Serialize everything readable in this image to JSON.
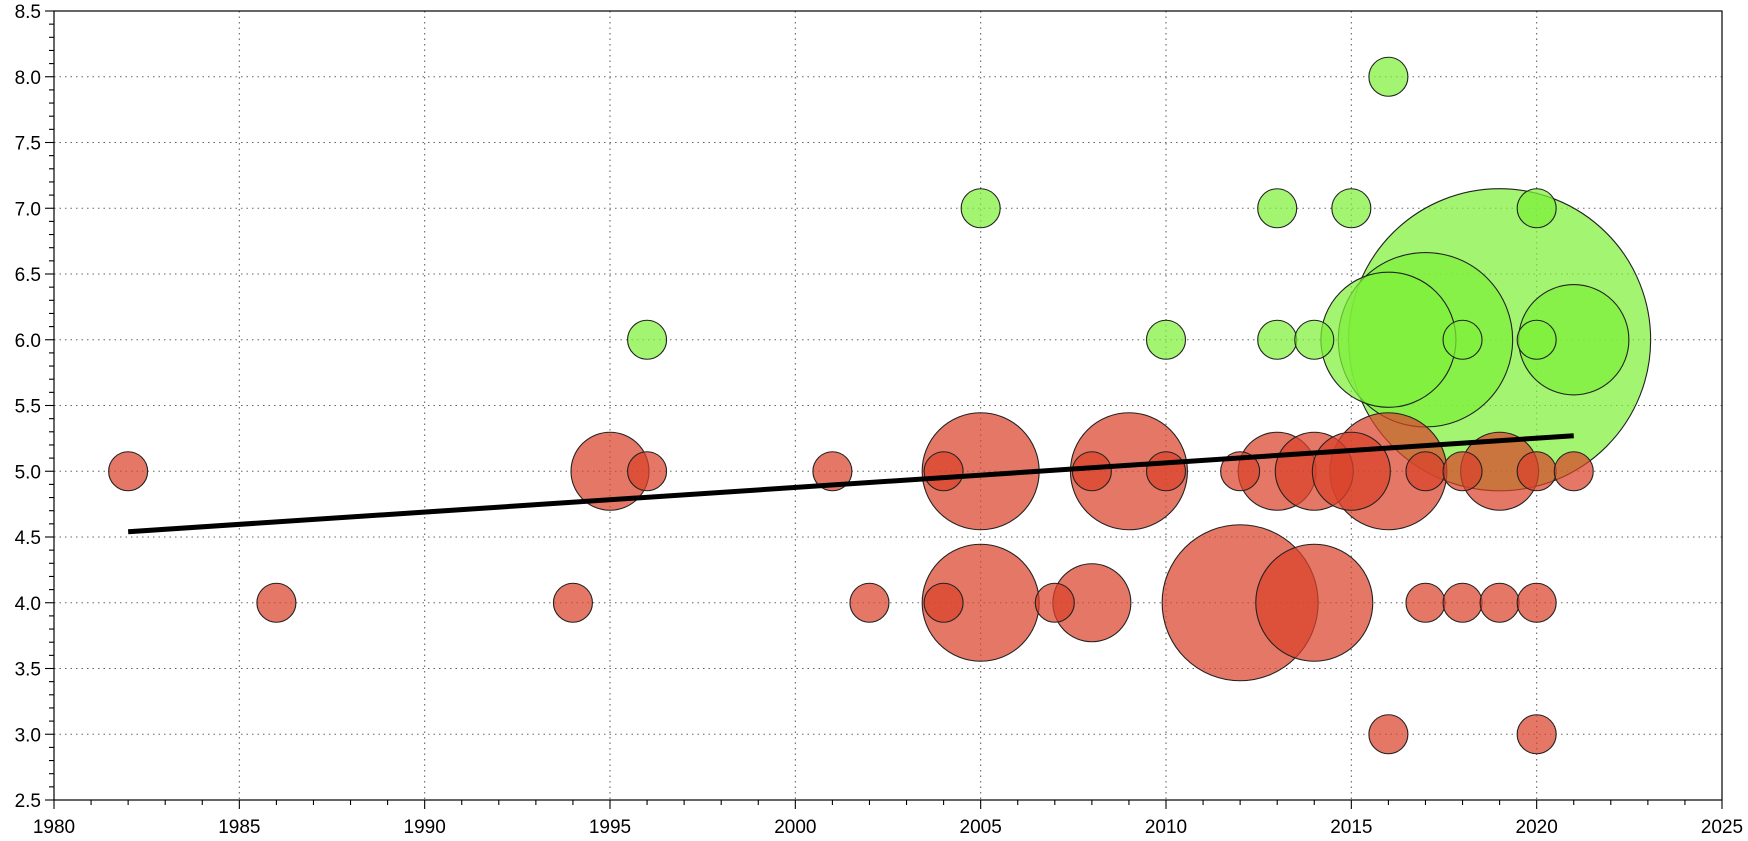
{
  "chart_data": {
    "type": "scatter",
    "subtype": "bubble",
    "title": "",
    "xlabel": "",
    "ylabel": "",
    "xlim": [
      1980,
      2025
    ],
    "ylim": [
      2.5,
      8.5
    ],
    "x_ticks": [
      1980,
      1985,
      1990,
      1995,
      2000,
      2005,
      2010,
      2015,
      2020,
      2025
    ],
    "x_tick_labels": [
      "1980",
      "1985",
      "1990",
      "1995",
      "2000",
      "2005",
      "2010",
      "2015",
      "2020",
      "2025"
    ],
    "y_ticks": [
      2.5,
      3.0,
      3.5,
      4.0,
      4.5,
      5.0,
      5.5,
      6.0,
      6.5,
      7.0,
      7.5,
      8.0,
      8.5
    ],
    "y_tick_labels": [
      "2.5",
      "3.0",
      "3.5",
      "4.0",
      "4.5",
      "5.0",
      "5.5",
      "6.0",
      "6.5",
      "7.0",
      "7.5",
      "8.0",
      "8.5"
    ],
    "grid": true,
    "grid_style": "dotted",
    "legend": "none",
    "colors": {
      "green_fill": "#7ef03a",
      "red_fill": "#d9432b",
      "bubble_stroke": "#222222",
      "trend": "#000000",
      "grid": "#666666"
    },
    "bubble_scale": "area proportional to count; smallest bubble = 1",
    "series": [
      {
        "color": "green",
        "points": [
          {
            "x": 1996,
            "y": 6.0,
            "count": 1
          },
          {
            "x": 2005,
            "y": 7.0,
            "count": 1
          },
          {
            "x": 2010,
            "y": 6.0,
            "count": 1
          },
          {
            "x": 2013,
            "y": 7.0,
            "count": 1
          },
          {
            "x": 2013,
            "y": 6.0,
            "count": 1
          },
          {
            "x": 2014,
            "y": 6.0,
            "count": 1
          },
          {
            "x": 2015,
            "y": 7.0,
            "count": 1
          },
          {
            "x": 2016,
            "y": 8.0,
            "count": 1
          },
          {
            "x": 2016,
            "y": 6.0,
            "count": 12
          },
          {
            "x": 2017,
            "y": 6.0,
            "count": 20
          },
          {
            "x": 2018,
            "y": 6.0,
            "count": 1
          },
          {
            "x": 2019,
            "y": 6.0,
            "count": 60
          },
          {
            "x": 2020,
            "y": 7.0,
            "count": 1
          },
          {
            "x": 2020,
            "y": 6.0,
            "count": 1
          },
          {
            "x": 2021,
            "y": 6.0,
            "count": 8
          }
        ]
      },
      {
        "color": "red",
        "points": [
          {
            "x": 1982,
            "y": 5.0,
            "count": 1
          },
          {
            "x": 1986,
            "y": 4.0,
            "count": 1
          },
          {
            "x": 1994,
            "y": 4.0,
            "count": 1
          },
          {
            "x": 1995,
            "y": 5.0,
            "count": 4
          },
          {
            "x": 1996,
            "y": 5.0,
            "count": 1
          },
          {
            "x": 2001,
            "y": 5.0,
            "count": 1
          },
          {
            "x": 2002,
            "y": 4.0,
            "count": 1
          },
          {
            "x": 2004,
            "y": 5.0,
            "count": 1
          },
          {
            "x": 2004,
            "y": 4.0,
            "count": 1
          },
          {
            "x": 2005,
            "y": 5.0,
            "count": 9
          },
          {
            "x": 2005,
            "y": 4.0,
            "count": 9
          },
          {
            "x": 2007,
            "y": 4.0,
            "count": 1
          },
          {
            "x": 2008,
            "y": 5.0,
            "count": 1
          },
          {
            "x": 2008,
            "y": 4.0,
            "count": 4
          },
          {
            "x": 2009,
            "y": 5.0,
            "count": 9
          },
          {
            "x": 2010,
            "y": 5.0,
            "count": 1
          },
          {
            "x": 2012,
            "y": 5.0,
            "count": 1
          },
          {
            "x": 2012,
            "y": 4.0,
            "count": 16
          },
          {
            "x": 2013,
            "y": 5.0,
            "count": 4
          },
          {
            "x": 2014,
            "y": 5.0,
            "count": 4
          },
          {
            "x": 2014,
            "y": 4.0,
            "count": 9
          },
          {
            "x": 2015,
            "y": 5.0,
            "count": 4
          },
          {
            "x": 2016,
            "y": 5.0,
            "count": 9
          },
          {
            "x": 2016,
            "y": 3.0,
            "count": 1
          },
          {
            "x": 2017,
            "y": 5.0,
            "count": 1
          },
          {
            "x": 2017,
            "y": 4.0,
            "count": 1
          },
          {
            "x": 2018,
            "y": 5.0,
            "count": 1
          },
          {
            "x": 2018,
            "y": 4.0,
            "count": 1
          },
          {
            "x": 2019,
            "y": 5.0,
            "count": 4
          },
          {
            "x": 2019,
            "y": 4.0,
            "count": 1
          },
          {
            "x": 2020,
            "y": 5.0,
            "count": 1
          },
          {
            "x": 2020,
            "y": 4.0,
            "count": 1
          },
          {
            "x": 2020,
            "y": 3.0,
            "count": 1
          },
          {
            "x": 2021,
            "y": 5.0,
            "count": 1
          }
        ]
      }
    ],
    "trend_line": {
      "x": [
        1982,
        2021
      ],
      "y": [
        4.54,
        5.27
      ]
    }
  }
}
